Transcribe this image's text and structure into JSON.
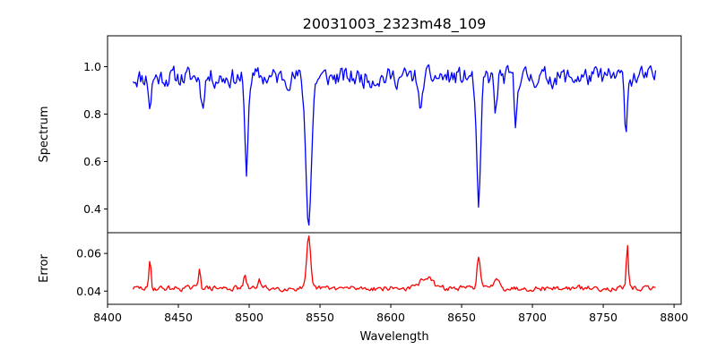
{
  "title": "20031003_2323m48_109",
  "chart_data": [
    {
      "type": "line",
      "name": "spectrum-panel",
      "ylabel": "Spectrum",
      "xlim": [
        8400,
        8805
      ],
      "ylim": [
        0.3,
        1.13
      ],
      "yticks": [
        0.4,
        0.6,
        0.8,
        1.0
      ],
      "yticklabels": [
        "0.4",
        "0.6",
        "0.8",
        "1.0"
      ],
      "color": "#0000ff",
      "series": [
        {
          "x_start": 8418,
          "x_end": 8787,
          "step": 0.9,
          "baseline": 0.955,
          "noise": 0.065,
          "features": [
            {
              "center": 8498,
              "depth": 0.4,
              "width": 1.2
            },
            {
              "center": 8542,
              "depth": 0.6,
              "width": 2.0
            },
            {
              "center": 8662,
              "depth": 0.55,
              "width": 1.5
            },
            {
              "center": 8467,
              "depth": 0.12,
              "width": 1.0
            },
            {
              "center": 8621,
              "depth": 0.18,
              "width": 1.0
            },
            {
              "center": 8674,
              "depth": 0.15,
              "width": 1.0
            },
            {
              "center": 8688,
              "depth": 0.22,
              "width": 0.8
            },
            {
              "center": 8766,
              "depth": 0.2,
              "width": 1.0
            },
            {
              "center": 8430,
              "depth": 0.12,
              "width": 1.0
            }
          ]
        }
      ]
    },
    {
      "type": "line",
      "name": "error-panel",
      "xlabel": "Wavelength",
      "ylabel": "Error",
      "xlim": [
        8400,
        8805
      ],
      "ylim": [
        0.033,
        0.071
      ],
      "xticks": [
        8400,
        8450,
        8500,
        8550,
        8600,
        8650,
        8700,
        8750,
        8800
      ],
      "xticklabels": [
        "8400",
        "8450",
        "8500",
        "8550",
        "8600",
        "8650",
        "8700",
        "8750",
        "8800"
      ],
      "yticks": [
        0.04,
        0.06
      ],
      "yticklabels": [
        "0.04",
        "0.06"
      ],
      "color": "#ff0000",
      "series": [
        {
          "x_start": 8418,
          "x_end": 8787,
          "step": 0.9,
          "baseline": 0.0415,
          "noise": 0.0022,
          "features": [
            {
              "center": 8542,
              "height": 0.027,
              "width": 1.3
            },
            {
              "center": 8767,
              "height": 0.022,
              "width": 0.7
            },
            {
              "center": 8662,
              "height": 0.017,
              "width": 1.2
            },
            {
              "center": 8430,
              "height": 0.015,
              "width": 0.7
            },
            {
              "center": 8465,
              "height": 0.011,
              "width": 0.8
            },
            {
              "center": 8625,
              "height": 0.006,
              "width": 4.0
            },
            {
              "center": 8497,
              "height": 0.006,
              "width": 1.0
            },
            {
              "center": 8507,
              "height": 0.005,
              "width": 1.0
            },
            {
              "center": 8675,
              "height": 0.006,
              "width": 2.0
            }
          ]
        }
      ]
    }
  ]
}
